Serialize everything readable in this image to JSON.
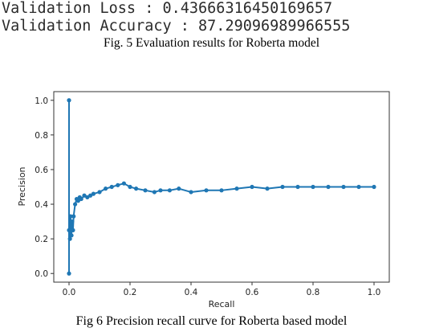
{
  "console": {
    "loss_line": "Validation Loss : 0.43666316450169657",
    "accuracy_line": "Validation Accuracy : 87.29096989966555"
  },
  "fig5_caption": "Fig. 5 Evaluation results for Roberta model",
  "fig6_caption": "Fig 6 Precision recall curve for Roberta based model",
  "chart_data": {
    "type": "line",
    "title": "",
    "xlabel": "Recall",
    "ylabel": "Precision",
    "xlim": [
      -0.05,
      1.05
    ],
    "ylim": [
      -0.05,
      1.05
    ],
    "x_ticks": [
      0.0,
      0.2,
      0.4,
      0.6,
      0.8,
      1.0
    ],
    "x_tick_labels": [
      "0.0",
      "0.2",
      "0.4",
      "0.6",
      "0.8",
      "1.0"
    ],
    "y_ticks": [
      0.0,
      0.2,
      0.4,
      0.6,
      0.8,
      1.0
    ],
    "y_tick_labels": [
      "0.0",
      "0.2",
      "0.4",
      "0.6",
      "0.8",
      "1.0"
    ],
    "grid": false,
    "marker": "dot",
    "color": "#1f77b4",
    "series": [
      {
        "x": [
          0.0,
          0.0,
          0.0,
          0.003,
          0.005,
          0.008,
          0.01,
          0.013,
          0.015,
          0.02,
          0.025,
          0.03,
          0.035,
          0.04,
          0.05,
          0.06,
          0.07,
          0.08,
          0.1,
          0.12,
          0.14,
          0.16,
          0.18,
          0.2,
          0.22,
          0.25,
          0.28,
          0.3,
          0.33,
          0.36,
          0.4,
          0.45,
          0.5,
          0.55,
          0.6,
          0.65,
          0.7,
          0.75,
          0.8,
          0.85,
          0.9,
          0.95,
          1.0
        ],
        "y": [
          1.0,
          0.0,
          0.25,
          0.2,
          0.33,
          0.22,
          0.3,
          0.25,
          0.33,
          0.4,
          0.43,
          0.42,
          0.44,
          0.43,
          0.45,
          0.44,
          0.45,
          0.46,
          0.47,
          0.49,
          0.5,
          0.51,
          0.52,
          0.5,
          0.49,
          0.48,
          0.47,
          0.48,
          0.48,
          0.49,
          0.47,
          0.48,
          0.48,
          0.49,
          0.5,
          0.49,
          0.5,
          0.5,
          0.5,
          0.5,
          0.5,
          0.5,
          0.5
        ]
      }
    ]
  }
}
